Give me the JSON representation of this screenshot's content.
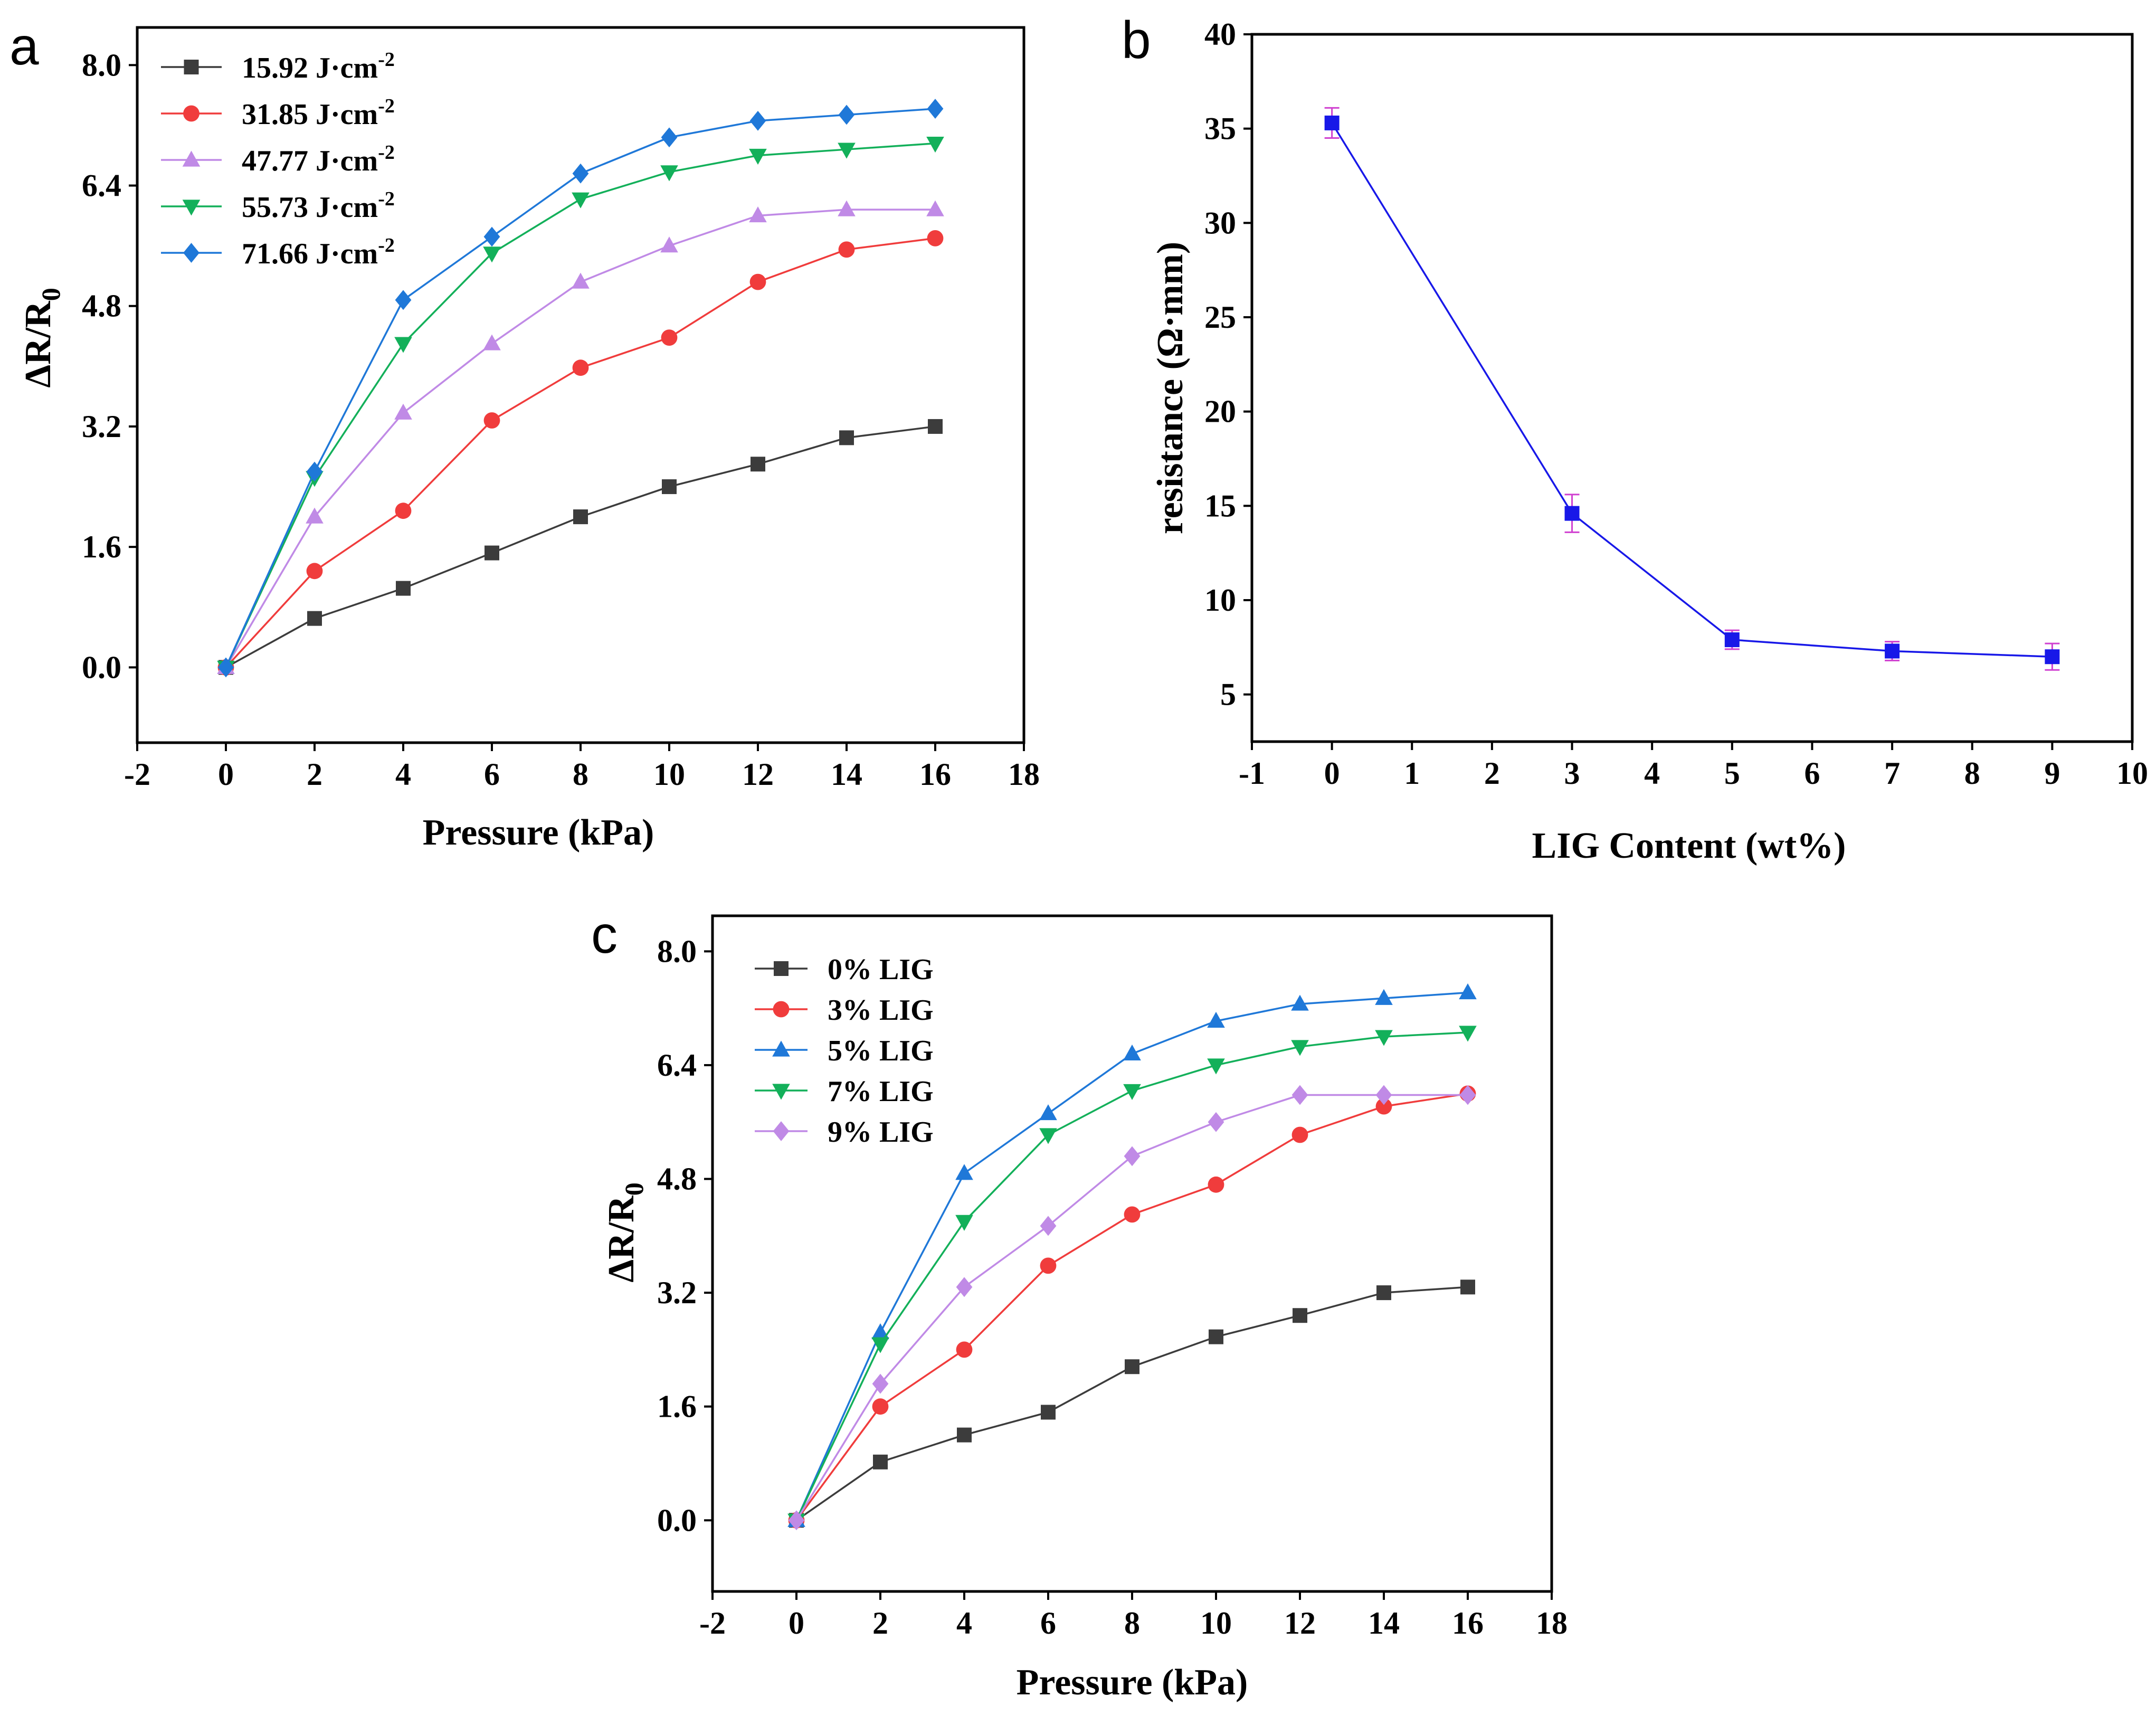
{
  "colors": {
    "black": "#3c3c3c",
    "red": "#f03c3c",
    "violet": "#c08ae6",
    "green": "#13b05a",
    "blue": "#1f78d8",
    "blue_b": "#1818e8",
    "errorbar": "#d040d0"
  },
  "chart_data": [
    {
      "panel_label": "a",
      "type": "line",
      "xlabel": "Pressure (kPa)",
      "ylabel_main": "ΔR/R",
      "ylabel_sub": "0",
      "xlim": [
        -2,
        18
      ],
      "ylim": [
        -1.0,
        8.5
      ],
      "xticks": [
        "-2",
        "0",
        "2",
        "4",
        "6",
        "8",
        "10",
        "12",
        "14",
        "16",
        "18"
      ],
      "yticks": [
        "0.0",
        "1.6",
        "3.2",
        "4.8",
        "6.4",
        "8.0"
      ],
      "legend_position": "top-left",
      "x": [
        0,
        2,
        4,
        6,
        8,
        10,
        12,
        14,
        16
      ],
      "series": [
        {
          "name": "15.92 J·cm",
          "sup": "-2",
          "marker": "square",
          "color": "#3c3c3c",
          "values": [
            0,
            0.65,
            1.05,
            1.52,
            2.0,
            2.4,
            2.7,
            3.05,
            3.2
          ]
        },
        {
          "name": "31.85 J·cm",
          "sup": "-2",
          "marker": "circle",
          "color": "#f03c3c",
          "values": [
            0,
            1.28,
            2.08,
            3.28,
            3.98,
            4.38,
            5.12,
            5.55,
            5.7
          ]
        },
        {
          "name": "47.77 J·cm",
          "sup": "-2",
          "marker": "triangle-up",
          "color": "#c08ae6",
          "values": [
            0,
            2.0,
            3.38,
            4.3,
            5.12,
            5.6,
            6.0,
            6.08,
            6.08
          ]
        },
        {
          "name": "55.73 J·cm",
          "sup": "-2",
          "marker": "triangle-down",
          "color": "#13b05a",
          "values": [
            0,
            2.52,
            4.3,
            5.5,
            6.22,
            6.58,
            6.8,
            6.88,
            6.96
          ]
        },
        {
          "name": "71.66 J·cm",
          "sup": "-2",
          "marker": "diamond",
          "color": "#1f78d8",
          "values": [
            0,
            2.6,
            4.88,
            5.72,
            6.56,
            7.04,
            7.26,
            7.34,
            7.42
          ]
        }
      ]
    },
    {
      "panel_label": "b",
      "type": "line",
      "xlabel": "LIG Content (wt%)",
      "ylabel": "resistance (Ω·mm)",
      "xlim": [
        -1,
        10
      ],
      "ylim": [
        2.5,
        40
      ],
      "xticks": [
        "-1",
        "0",
        "1",
        "2",
        "3",
        "4",
        "5",
        "6",
        "7",
        "8",
        "9",
        "10"
      ],
      "yticks": [
        "5",
        "10",
        "15",
        "20",
        "25",
        "30",
        "35",
        "40"
      ],
      "x": [
        0,
        3,
        5,
        7,
        9
      ],
      "series": [
        {
          "name": "resistance",
          "marker": "square",
          "color": "#1818e8",
          "values": [
            35.3,
            14.6,
            7.9,
            7.3,
            7.0
          ],
          "errors": [
            0.8,
            1.0,
            0.5,
            0.5,
            0.7
          ]
        }
      ]
    },
    {
      "panel_label": "c",
      "type": "line",
      "xlabel": "Pressure (kPa)",
      "ylabel_main": "ΔR/R",
      "ylabel_sub": "0",
      "xlim": [
        -2,
        18
      ],
      "ylim": [
        -1.0,
        8.5
      ],
      "xticks": [
        "-2",
        "0",
        "2",
        "4",
        "6",
        "8",
        "10",
        "12",
        "14",
        "16",
        "18"
      ],
      "yticks": [
        "0.0",
        "1.6",
        "3.2",
        "4.8",
        "6.4",
        "8.0"
      ],
      "legend_position": "top-left",
      "x": [
        0,
        2,
        4,
        6,
        8,
        10,
        12,
        14,
        16
      ],
      "series": [
        {
          "name": "0% LIG",
          "marker": "square",
          "color": "#3c3c3c",
          "values": [
            0,
            0.82,
            1.2,
            1.52,
            2.16,
            2.58,
            2.88,
            3.2,
            3.28
          ]
        },
        {
          "name": "3% LIG",
          "marker": "circle",
          "color": "#f03c3c",
          "values": [
            0,
            1.6,
            2.4,
            3.58,
            4.3,
            4.72,
            5.42,
            5.82,
            6.0
          ]
        },
        {
          "name": "5% LIG",
          "marker": "triangle-up",
          "color": "#1f78d8",
          "values": [
            0,
            2.64,
            4.88,
            5.72,
            6.56,
            7.02,
            7.26,
            7.34,
            7.42
          ]
        },
        {
          "name": "7% LIG",
          "marker": "triangle-down",
          "color": "#13b05a",
          "values": [
            0,
            2.48,
            4.2,
            5.42,
            6.04,
            6.4,
            6.66,
            6.8,
            6.86
          ]
        },
        {
          "name": "9% LIG",
          "marker": "diamond",
          "color": "#c08ae6",
          "values": [
            0,
            1.92,
            3.28,
            4.14,
            5.12,
            5.6,
            5.98,
            5.98,
            5.98
          ]
        }
      ]
    }
  ]
}
